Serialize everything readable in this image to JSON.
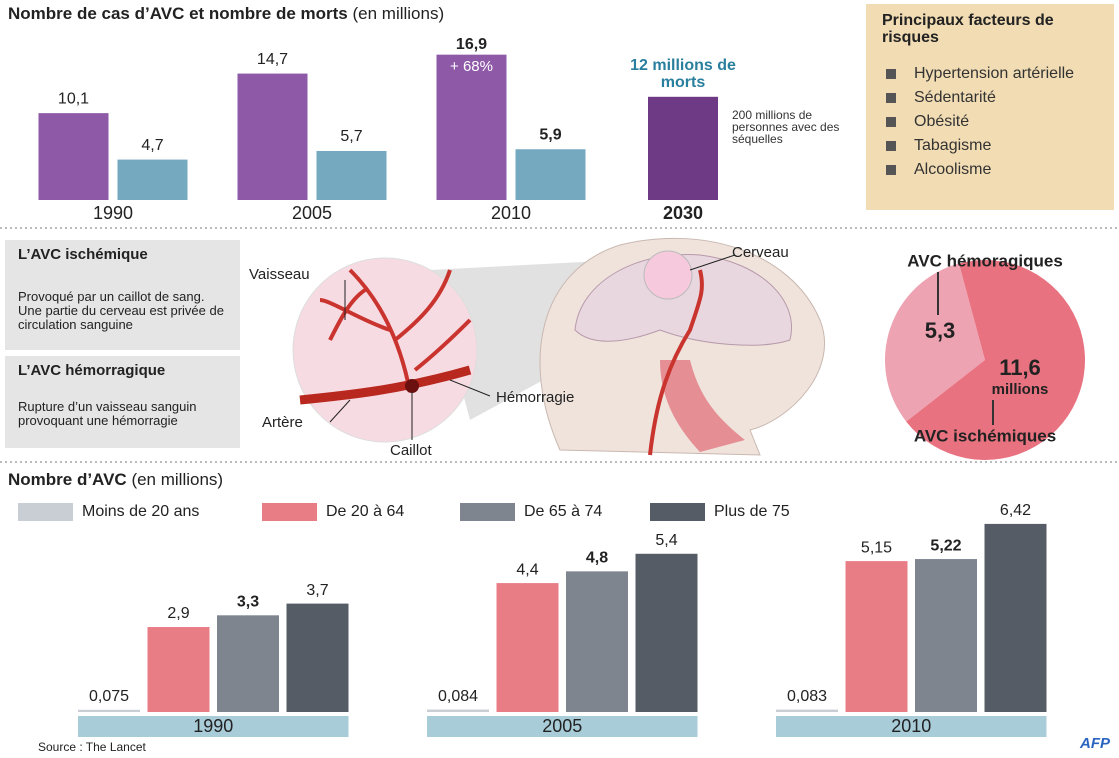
{
  "chart_data": [
    {
      "type": "bar",
      "title": "Nombre de cas d’AVC et nombre de morts",
      "subtitle": "(en millions)",
      "categories": [
        "1990",
        "2005",
        "2010",
        "2030"
      ],
      "series": [
        {
          "color": "#8e5aa8",
          "values": [
            10.1,
            14.7,
            16.9,
            null
          ],
          "value_labels": [
            "10,1",
            "14,7",
            "16,9",
            null
          ]
        },
        {
          "color": "#74a9bf",
          "values": [
            4.7,
            5.7,
            5.9,
            null
          ],
          "value_labels": [
            "4,7",
            "5,7",
            "5,9",
            null
          ]
        },
        {
          "color": "#6e3a86",
          "values": [
            null,
            null,
            null,
            12
          ],
          "value_labels": [
            null,
            null,
            null,
            "12 millions de morts"
          ]
        }
      ],
      "annotations": [
        "+ 68%",
        "200 millions de personnes avec des séquelles"
      ]
    },
    {
      "type": "pie",
      "categories": [
        "AVC hémoragiques",
        "AVC ischémiques"
      ],
      "values": [
        5.3,
        11.6
      ],
      "value_labels": [
        "5,3",
        "11,6"
      ],
      "unit": "millions",
      "colors": [
        "#eea3b3",
        "#e8727f"
      ]
    },
    {
      "type": "bar",
      "title": "Nombre d’AVC",
      "subtitle": "(en millions)",
      "categories": [
        "1990",
        "2005",
        "2010"
      ],
      "series": [
        {
          "name": "Moins de 20 ans",
          "color": "#c9ced5",
          "values": [
            0.075,
            0.084,
            0.083
          ],
          "value_labels": [
            "0,075",
            "0,084",
            "0,083"
          ]
        },
        {
          "name": "De 20 à 64",
          "color": "#e97d86",
          "values": [
            2.9,
            4.4,
            5.15
          ],
          "value_labels": [
            "2,9",
            "4,4",
            "5,15"
          ]
        },
        {
          "name": "De 65 à 74",
          "color": "#7e858e",
          "values": [
            3.3,
            4.8,
            5.22
          ],
          "value_labels": [
            "3,3",
            "4,8",
            "5,22"
          ]
        },
        {
          "name": "Plus de 75",
          "color": "#555c66",
          "values": [
            3.7,
            5.4,
            6.42
          ],
          "value_labels": [
            "3,7",
            "5,4",
            "6,42"
          ]
        }
      ]
    }
  ],
  "risk_factors": {
    "title": "Principaux facteurs de risques",
    "items": [
      "Hypertension artérielle",
      "Sédentarité",
      "Obésité",
      "Tabagisme",
      "Alcoolisme"
    ]
  },
  "definitions": [
    {
      "title": "L’AVC ischémique",
      "text": "Provoqué par un caillot de sang. Une partie du cerveau est privée de circulation sanguine"
    },
    {
      "title": "L’AVC hémorragique",
      "text": "Rupture d’un vaisseau sanguin provoquant une hémorragie"
    }
  ],
  "diagram": {
    "labels": [
      "Vaisseau",
      "Cerveau",
      "Hémorragie",
      "Artère",
      "Caillot"
    ]
  },
  "source": "Source :  The Lancet",
  "credit": "AFP"
}
